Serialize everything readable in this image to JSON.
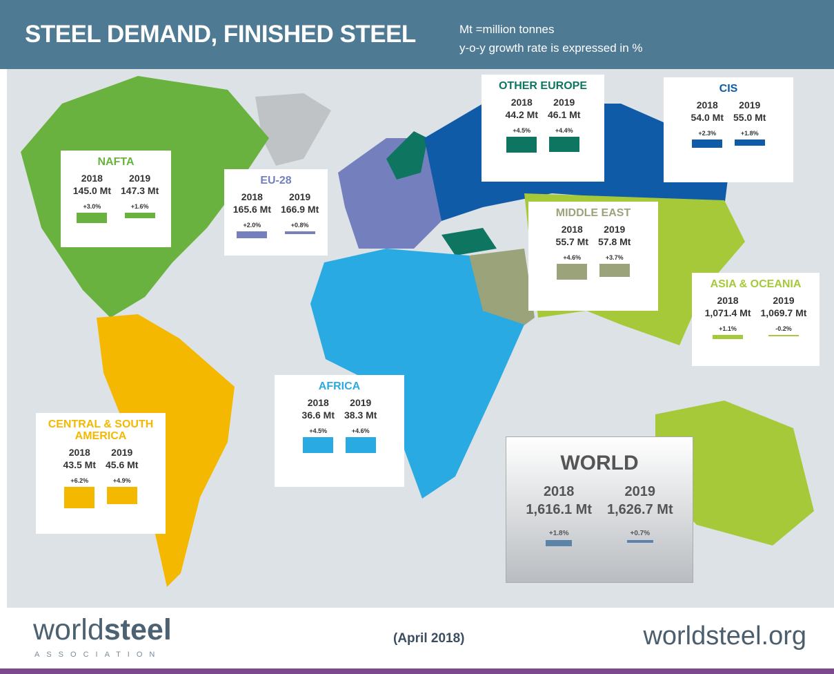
{
  "header": {
    "title": "STEEL DEMAND, FINISHED STEEL",
    "notes": [
      "Mt =million tonnes",
      "y-o-y growth rate is expressed in %"
    ]
  },
  "regions": [
    {
      "name": "NAFTA",
      "color": "#6ab23f",
      "years": [
        "2018",
        "2019"
      ],
      "demand": [
        "145.0 Mt",
        "147.3 Mt"
      ],
      "growth": [
        {
          "value": 3.0,
          "label": "+3.0%"
        },
        {
          "value": 1.6,
          "label": "+1.6%"
        }
      ]
    },
    {
      "name": "EU-28",
      "color": "#7480bd",
      "years": [
        "2018",
        "2019"
      ],
      "demand": [
        "165.6 Mt",
        "166.9 Mt"
      ],
      "growth": [
        {
          "value": 2.0,
          "label": "+2.0%"
        },
        {
          "value": 0.8,
          "label": "+0.8%"
        }
      ]
    },
    {
      "name": "OTHER EUROPE",
      "color": "#0e7560",
      "years": [
        "2018",
        "2019"
      ],
      "demand": [
        "44.2 Mt",
        "46.1 Mt"
      ],
      "growth": [
        {
          "value": 4.5,
          "label": "+4.5%"
        },
        {
          "value": 4.4,
          "label": "+4.4%"
        }
      ]
    },
    {
      "name": "CIS",
      "color": "#0f5ba8",
      "years": [
        "2018",
        "2019"
      ],
      "demand": [
        "54.0 Mt",
        "55.0 Mt"
      ],
      "growth": [
        {
          "value": 2.3,
          "label": "+2.3%"
        },
        {
          "value": 1.8,
          "label": "+1.8%"
        }
      ]
    },
    {
      "name": "MIDDLE EAST",
      "color": "#9aa37a",
      "years": [
        "2018",
        "2019"
      ],
      "demand": [
        "55.7 Mt",
        "57.8 Mt"
      ],
      "growth": [
        {
          "value": 4.6,
          "label": "+4.6%"
        },
        {
          "value": 3.7,
          "label": "+3.7%"
        }
      ]
    },
    {
      "name": "ASIA & OCEANIA",
      "color": "#a6c93a",
      "years": [
        "2018",
        "2019"
      ],
      "demand": [
        "1,071.4 Mt",
        "1,069.7 Mt"
      ],
      "growth": [
        {
          "value": 1.1,
          "label": "+1.1%"
        },
        {
          "value": -0.2,
          "label": "-0.2%"
        }
      ]
    },
    {
      "name": "AFRICA",
      "color": "#2aaae2",
      "years": [
        "2018",
        "2019"
      ],
      "demand": [
        "36.6 Mt",
        "38.3 Mt"
      ],
      "growth": [
        {
          "value": 4.5,
          "label": "+4.5%"
        },
        {
          "value": 4.6,
          "label": "+4.6%"
        }
      ]
    },
    {
      "name": "CENTRAL & SOUTH AMERICA",
      "color": "#f5b800",
      "years": [
        "2018",
        "2019"
      ],
      "demand": [
        "43.5 Mt",
        "45.6 Mt"
      ],
      "growth": [
        {
          "value": 6.2,
          "label": "+6.2%"
        },
        {
          "value": 4.9,
          "label": "+4.9%"
        }
      ]
    },
    {
      "name": "WORLD",
      "color": "#5b84a8",
      "years": [
        "2018",
        "2019"
      ],
      "demand": [
        "1,616.1 Mt",
        "1,626.7 Mt"
      ],
      "growth": [
        {
          "value": 1.8,
          "label": "+1.8%"
        },
        {
          "value": 0.7,
          "label": "+0.7%"
        }
      ]
    }
  ],
  "footer": {
    "logo": [
      "world",
      "steel"
    ],
    "logo_sub": "ASSOCIATION",
    "date": "(April 2018)",
    "url": "worldsteel.org"
  }
}
